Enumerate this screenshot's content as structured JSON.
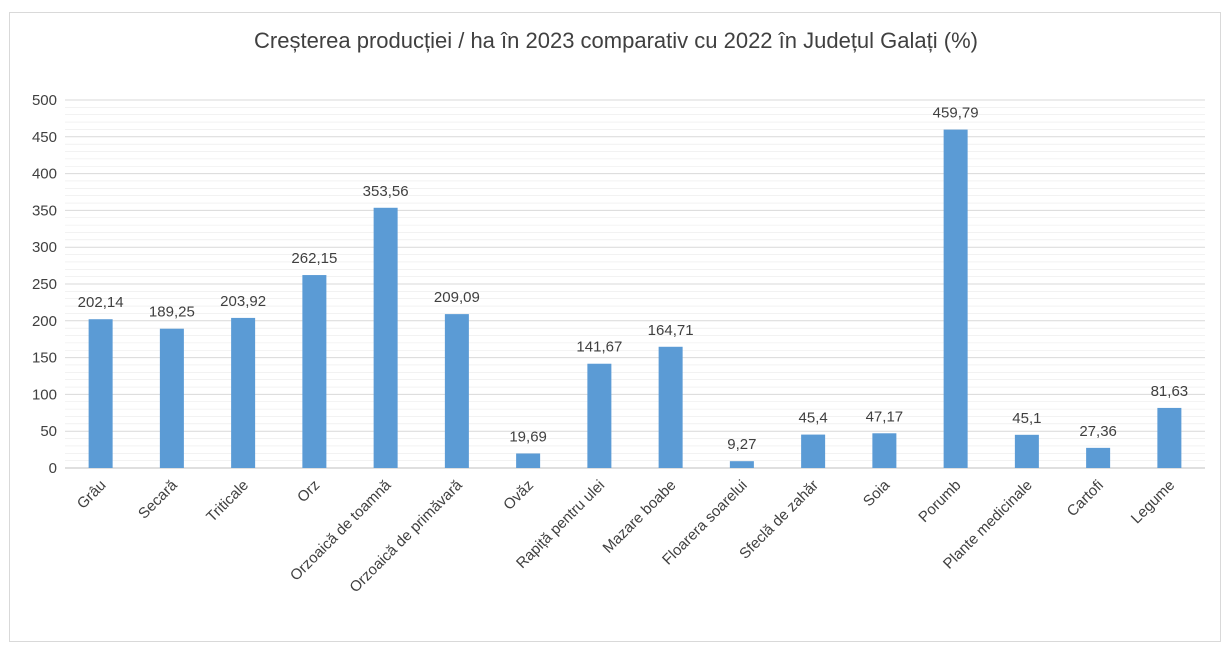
{
  "chart_data": {
    "type": "bar",
    "title": "Creșterea producției / ha în 2023 comparativ cu 2022 în Județul Galați (%)",
    "xlabel": "",
    "ylabel": "",
    "ylim": [
      0,
      500
    ],
    "yticks": [
      "0",
      "50",
      "100",
      "150",
      "200",
      "250",
      "300",
      "350",
      "400",
      "450",
      "500"
    ],
    "grid": true,
    "categories": [
      "Grâu",
      "Secară",
      "Triticale",
      "Orz",
      "Orzoaică de toamnă",
      "Orzoaică de primăvară",
      "Ovăz",
      "Rapiță pentru ulei",
      "Mazare boabe",
      "Floarera soarelui",
      "Sfeclă de zahăr",
      "Soia",
      "Porumb",
      "Plante medicinale",
      "Cartofi",
      "Legume"
    ],
    "values": [
      202.14,
      189.25,
      203.92,
      262.15,
      353.56,
      209.09,
      19.69,
      141.67,
      164.71,
      9.27,
      45.4,
      47.17,
      459.79,
      45.1,
      27.36,
      81.63
    ],
    "data_labels": [
      "202,14",
      "189,25",
      "203,92",
      "262,15",
      "353,56",
      "209,09",
      "19,69",
      "141,67",
      "164,71",
      "9,27",
      "45,4",
      "47,17",
      "459,79",
      "45,1",
      "27,36",
      "81,63"
    ],
    "colors": {
      "bar": "#5b9bd5",
      "text": "#404040",
      "grid": "#d9d9d9",
      "axis": "#bfbfbf"
    }
  }
}
